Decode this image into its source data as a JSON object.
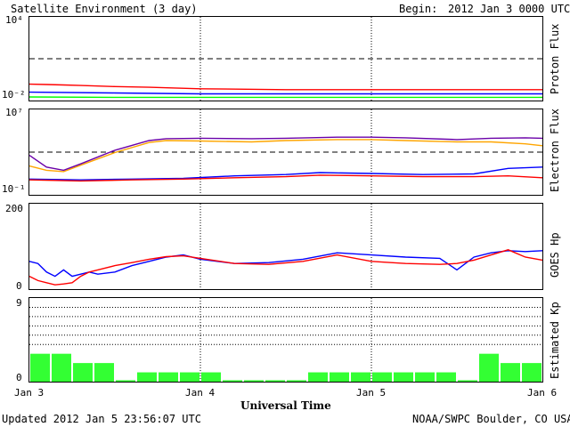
{
  "header": {
    "title": "Satellite Environment (3 day)",
    "begin_label": "Begin:",
    "begin_value": "2012 Jan 3 0000 UTC"
  },
  "footer": {
    "updated": "Updated 2012 Jan  5 23:56:07 UTC",
    "credit": "NOAA/SWPC Boulder, CO USA"
  },
  "x_axis": {
    "label": "Universal Time",
    "ticks": [
      "Jan 3",
      "Jan 4",
      "Jan 5",
      "Jan 6"
    ]
  },
  "colors": {
    "red": "#ff0000",
    "blue": "#0000ff",
    "green": "#00ff00",
    "orange": "#ffa500",
    "purple": "#6a00a8",
    "kp_bar": "#33ff33"
  },
  "chart_data": [
    {
      "type": "line",
      "ylabel": "Proton Flux",
      "scale": "log",
      "yticks": [
        "10⁴",
        "10⁻²"
      ],
      "ylim": [
        0.01,
        10000
      ],
      "threshold": 10,
      "x_days": [
        0,
        3
      ],
      "series": [
        {
          "color": "#ff0000",
          "x": [
            0,
            0.1,
            0.2,
            0.3,
            0.4,
            0.5,
            0.7,
            1.0,
            1.5,
            2.0,
            2.5,
            3.0
          ],
          "y": [
            0.15,
            0.14,
            0.13,
            0.12,
            0.11,
            0.1,
            0.09,
            0.07,
            0.06,
            0.06,
            0.06,
            0.06
          ]
        },
        {
          "color": "#0000ff",
          "x": [
            0,
            0.5,
            1.0,
            1.5,
            2.0,
            2.5,
            3.0
          ],
          "y": [
            0.04,
            0.035,
            0.03,
            0.03,
            0.03,
            0.03,
            0.03
          ]
        },
        {
          "color": "#00ff00",
          "x": [
            0,
            0.5,
            1.0,
            1.5,
            2.0,
            2.5,
            3.0
          ],
          "y": [
            0.018,
            0.017,
            0.017,
            0.017,
            0.017,
            0.017,
            0.017
          ]
        }
      ]
    },
    {
      "type": "line",
      "ylabel": "Electron Flux",
      "scale": "log",
      "yticks": [
        "10⁷",
        "10⁻¹"
      ],
      "ylim": [
        0.1,
        10000000
      ],
      "threshold": 1000,
      "x_days": [
        0,
        3
      ],
      "series": [
        {
          "color": "#ffa500",
          "x": [
            0,
            0.1,
            0.2,
            0.3,
            0.5,
            0.7,
            0.8,
            1.0,
            1.3,
            1.5,
            1.8,
            2.0,
            2.2,
            2.5,
            2.7,
            2.9,
            3.0
          ],
          "y": [
            50,
            20,
            15,
            60,
            900,
            8000,
            12000,
            11000,
            9000,
            12000,
            15000,
            15000,
            12000,
            9000,
            9000,
            6000,
            4000
          ]
        },
        {
          "color": "#6a00a8",
          "x": [
            0,
            0.1,
            0.2,
            0.3,
            0.5,
            0.7,
            0.8,
            1.0,
            1.3,
            1.5,
            1.8,
            2.0,
            2.2,
            2.5,
            2.7,
            2.9,
            3.0
          ],
          "y": [
            500,
            40,
            20,
            80,
            1500,
            12000,
            18000,
            20000,
            18000,
            20000,
            25000,
            25000,
            22000,
            15000,
            20000,
            22000,
            20000
          ]
        },
        {
          "color": "#0000ff",
          "x": [
            0,
            0.3,
            0.6,
            0.9,
            1.2,
            1.5,
            1.7,
            2.0,
            2.3,
            2.6,
            2.8,
            3.0
          ],
          "y": [
            3,
            2.5,
            3,
            3.5,
            6,
            8,
            12,
            10,
            8,
            9,
            30,
            40
          ]
        },
        {
          "color": "#ff0000",
          "x": [
            0,
            0.3,
            0.6,
            0.9,
            1.2,
            1.5,
            1.7,
            2.0,
            2.3,
            2.6,
            2.8,
            3.0
          ],
          "y": [
            2.5,
            2,
            2.5,
            3,
            4,
            5,
            7,
            6,
            5,
            5,
            6,
            4
          ]
        }
      ]
    },
    {
      "type": "line",
      "ylabel": "GOES Hp",
      "scale": "linear",
      "yticks": [
        "200",
        "0"
      ],
      "ylim": [
        0,
        200
      ],
      "x_days": [
        0,
        3
      ],
      "series": [
        {
          "color": "#0000ff",
          "x": [
            0,
            0.05,
            0.1,
            0.15,
            0.2,
            0.25,
            0.3,
            0.35,
            0.4,
            0.5,
            0.6,
            0.7,
            0.8,
            0.9,
            1.0,
            1.2,
            1.4,
            1.6,
            1.8,
            2.0,
            2.2,
            2.4,
            2.5,
            2.55,
            2.6,
            2.7,
            2.8,
            2.9,
            3.0
          ],
          "y": [
            65,
            60,
            40,
            30,
            45,
            30,
            35,
            40,
            35,
            40,
            55,
            65,
            75,
            80,
            70,
            60,
            62,
            70,
            85,
            80,
            75,
            72,
            45,
            60,
            75,
            85,
            90,
            88,
            90
          ]
        },
        {
          "color": "#ff0000",
          "x": [
            0,
            0.05,
            0.1,
            0.15,
            0.2,
            0.25,
            0.3,
            0.35,
            0.4,
            0.5,
            0.6,
            0.7,
            0.8,
            0.9,
            1.0,
            1.2,
            1.4,
            1.6,
            1.8,
            2.0,
            2.2,
            2.4,
            2.5,
            2.6,
            2.7,
            2.8,
            2.9,
            3.0
          ],
          "y": [
            30,
            20,
            15,
            10,
            12,
            15,
            30,
            40,
            45,
            55,
            62,
            70,
            76,
            78,
            72,
            60,
            58,
            65,
            80,
            65,
            60,
            58,
            60,
            68,
            80,
            92,
            75,
            68
          ]
        }
      ]
    },
    {
      "type": "bar",
      "ylabel": "Estimated Kp",
      "yticks": [
        "9",
        "0"
      ],
      "ylim": [
        0,
        9
      ],
      "gridlines": [
        4,
        5,
        6,
        7,
        8
      ],
      "values": [
        3,
        3,
        2,
        2,
        0,
        1,
        1,
        1,
        1,
        0,
        0,
        0,
        0,
        1,
        1,
        1,
        1,
        1,
        1,
        1,
        0,
        3,
        2,
        2
      ]
    }
  ]
}
